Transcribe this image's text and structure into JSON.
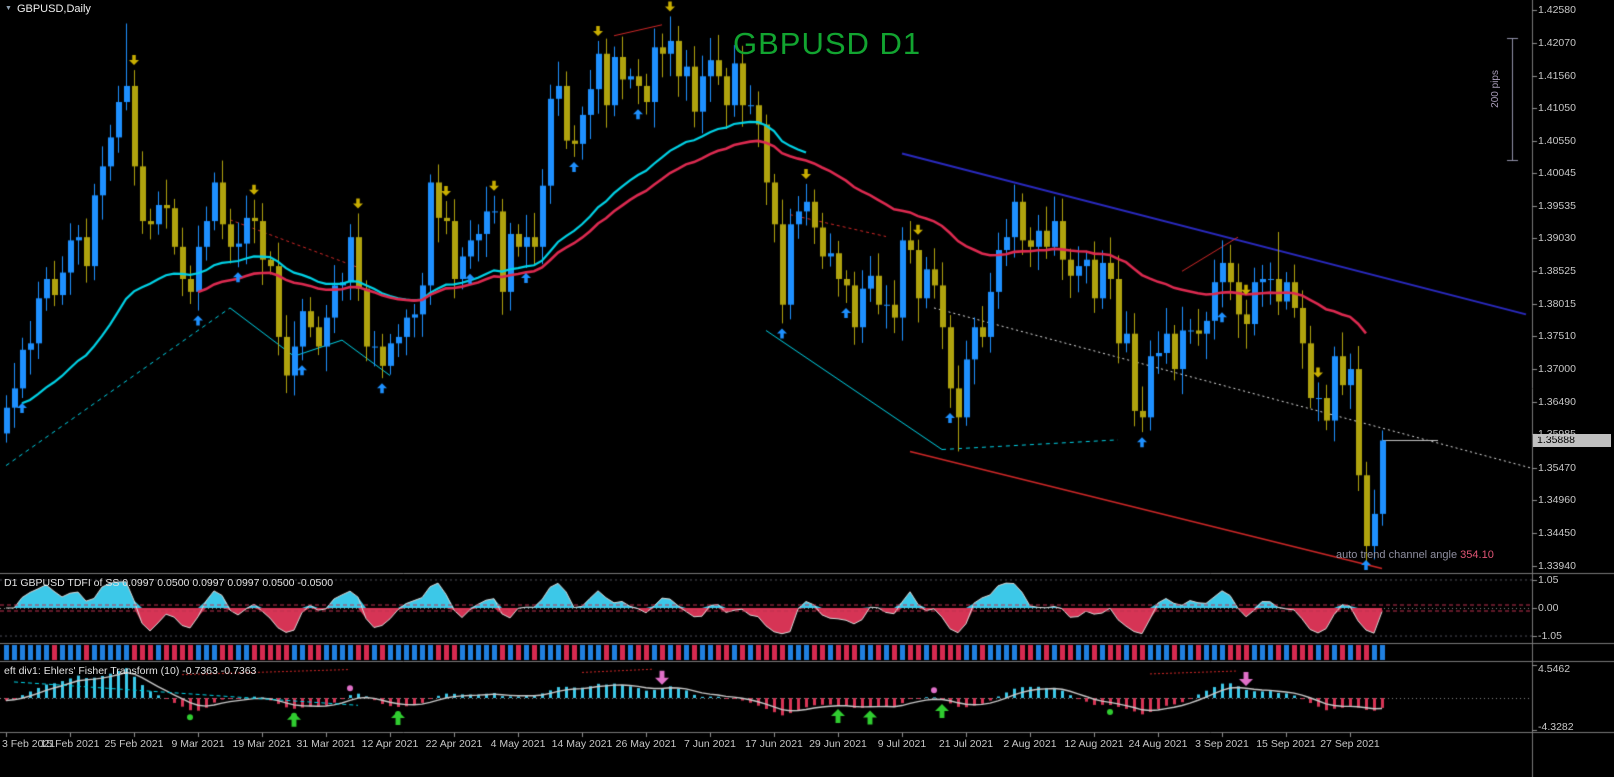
{
  "window": {
    "symbol_label": "GBPUSD,Daily",
    "watermark": "GBPUSD D1"
  },
  "overlays": {
    "pips_label": "200 pips",
    "trend_channel": {
      "label": "auto trend channel angle",
      "value": "354.10"
    }
  },
  "main_chart": {
    "current_price": "1.35888"
  },
  "indicators": {
    "tdfi": {
      "label": "D1 GBPUSD TDFI of SS 0.0997 0.0500 0.0997 0.0997 0.0500 -0.0500",
      "ticks": [
        "1.05",
        "0.00",
        "-1.05"
      ],
      "filter_levels": [
        0.05,
        -0.05
      ]
    },
    "fisher": {
      "label": "eft div1: Ehlers' Fisher Transform (10) -0.7363 -0.7363",
      "ticks": [
        "4.5462",
        "-4.3282"
      ]
    }
  },
  "colors": {
    "bull": "#1E90FF",
    "bear": "#b0a30e",
    "ma_fast": "#00d2e6",
    "ma_slow": "#dc2a50",
    "navy": "#2a2ac0",
    "channel_red": "#d02828",
    "dotted_white": "#e0e0e0",
    "silver": "#c0c0c0",
    "arrow_up": "#1E90FF",
    "arrow_down": "#c9ae00",
    "green": "#30cc30",
    "pink": "#e070c8",
    "tdfi_pos": "#3cc8e8",
    "tdfi_neg": "#d63455",
    "tdfi_line": "#d8d8d8",
    "filter_red": "#c03050",
    "strip_up": "#2080e0",
    "strip_down": "#d62a50",
    "watermark": "#12a430",
    "trend_value": "#e05575",
    "axis_text": "#c8c8c8"
  },
  "chart_data": {
    "type": "candlestick",
    "symbol": "GBPUSD",
    "timeframe": "D1",
    "bars_per_label": 8,
    "first_open": 1.36,
    "closes": [
      1.364,
      1.367,
      1.373,
      1.374,
      1.381,
      1.384,
      1.3815,
      1.385,
      1.39,
      1.3905,
      1.386,
      1.397,
      1.4015,
      1.406,
      1.4115,
      1.414,
      1.4015,
      1.393,
      1.3925,
      1.3955,
      1.395,
      1.389,
      1.384,
      1.382,
      1.389,
      1.393,
      1.399,
      1.3925,
      1.389,
      1.3895,
      1.3935,
      1.393,
      1.387,
      1.386,
      1.375,
      1.369,
      1.3735,
      1.379,
      1.3765,
      1.3735,
      1.378,
      1.383,
      1.3835,
      1.3905,
      1.3825,
      1.3735,
      1.3735,
      1.3705,
      1.374,
      1.375,
      1.378,
      1.3785,
      1.383,
      1.399,
      1.3935,
      1.393,
      1.384,
      1.3875,
      1.39,
      1.391,
      1.3945,
      1.3945,
      1.382,
      1.391,
      1.389,
      1.3905,
      1.389,
      1.3985,
      1.412,
      1.414,
      1.4055,
      1.405,
      1.4095,
      1.4135,
      1.419,
      1.411,
      1.4185,
      1.415,
      1.4155,
      1.414,
      1.4115,
      1.42,
      1.419,
      1.421,
      1.4155,
      1.417,
      1.41,
      1.4155,
      1.418,
      1.4155,
      1.411,
      1.4175,
      1.411,
      1.411,
      1.408,
      1.399,
      1.3925,
      1.38,
      1.3925,
      1.3945,
      1.396,
      1.392,
      1.3875,
      1.388,
      1.384,
      1.383,
      1.3765,
      1.3825,
      1.3845,
      1.38,
      1.38,
      1.378,
      1.39,
      1.3885,
      1.381,
      1.3855,
      1.383,
      1.3765,
      1.367,
      1.3625,
      1.3715,
      1.3765,
      1.375,
      1.382,
      1.3885,
      1.3905,
      1.396,
      1.39,
      1.389,
      1.3915,
      1.389,
      1.393,
      1.387,
      1.3845,
      1.386,
      1.387,
      1.381,
      1.3865,
      1.384,
      1.374,
      1.3755,
      1.3635,
      1.3625,
      1.372,
      1.3725,
      1.3755,
      1.37,
      1.376,
      1.376,
      1.3755,
      1.3775,
      1.3835,
      1.3865,
      1.3835,
      1.3785,
      1.377,
      1.3835,
      1.384,
      1.384,
      1.3805,
      1.3835,
      1.3795,
      1.374,
      1.3655,
      1.3655,
      1.362,
      1.372,
      1.3675,
      1.37,
      1.3535,
      1.3425,
      1.3475,
      1.3589
    ],
    "wick_overrides": {
      "15": [
        1.4237,
        null
      ],
      "83": [
        1.4248,
        null
      ],
      "119": [
        null,
        1.3572
      ],
      "142": [
        null,
        1.3602
      ],
      "159": [
        1.3913,
        null
      ],
      "170": [
        null,
        1.339
      ]
    },
    "price_range": {
      "max": 1.4258,
      "min": 1.3394
    },
    "price_ticks": [
      "1.42580",
      "1.42070",
      "1.41560",
      "1.41050",
      "1.40550",
      "1.40045",
      "1.39535",
      "1.39030",
      "1.38525",
      "1.38015",
      "1.37510",
      "1.37000",
      "1.36490",
      "1.35985",
      "1.35470",
      "1.34960",
      "1.34450",
      "1.33940"
    ],
    "time_labels": [
      "3 Feb 2021",
      "15 Feb 2021",
      "25 Feb 2021",
      "9 Mar 2021",
      "19 Mar 2021",
      "31 Mar 2021",
      "12 Apr 2021",
      "22 Apr 2021",
      "4 May 2021",
      "14 May 2021",
      "26 May 2021",
      "7 Jun 2021",
      "17 Jun 2021",
      "29 Jun 2021",
      "9 Jul 2021",
      "21 Jul 2021",
      "2 Aug 2021",
      "12 Aug 2021",
      "24 Aug 2021",
      "3 Sep 2021",
      "15 Sep 2021",
      "27 Sep 2021"
    ],
    "moving_averages": [
      {
        "name": "fast-ma",
        "color_key": "ma_fast",
        "period": 34,
        "from": 2,
        "to": 100,
        "width": 2.2
      },
      {
        "name": "slow-ma",
        "color_key": "ma_slow",
        "period": 45,
        "from": 24,
        "to": 170,
        "width": 2.6
      }
    ],
    "overlay_lines": [
      {
        "name": "upper-channel",
        "color_key": "navy",
        "width": 2,
        "dash": [],
        "points": [
          [
            112,
            1.4035
          ],
          [
            190,
            1.3785
          ]
        ]
      },
      {
        "name": "lower-channel",
        "color_key": "channel_red",
        "width": 1.5,
        "dash": [],
        "points": [
          [
            113,
            1.3572
          ],
          [
            172,
            1.339
          ]
        ]
      },
      {
        "name": "mid-trend-dotted",
        "color_key": "dotted_white",
        "width": 1,
        "dash": [
          2,
          3
        ],
        "points": [
          [
            116,
            1.3795
          ],
          [
            191,
            1.3545
          ]
        ]
      },
      {
        "name": "left-support-dashed",
        "color_key": "ma_fast",
        "width": 1,
        "dash": [
          4,
          4
        ],
        "points": [
          [
            0,
            1.355
          ],
          [
            28,
            1.3795
          ]
        ]
      },
      {
        "name": "march-support",
        "color_key": "ma_fast",
        "width": 1,
        "dash": [],
        "points": [
          [
            28,
            1.3795
          ],
          [
            36,
            1.372
          ],
          [
            42,
            1.3745
          ],
          [
            48,
            1.369
          ]
        ]
      },
      {
        "name": "summer-support",
        "color_key": "ma_fast",
        "width": 1,
        "dash": [],
        "points": [
          [
            95,
            1.376
          ],
          [
            117,
            1.3575
          ]
        ]
      },
      {
        "name": "summer-support-ext",
        "color_key": "ma_fast",
        "width": 1,
        "dash": [
          4,
          4
        ],
        "points": [
          [
            117,
            1.3575
          ],
          [
            139,
            1.359
          ]
        ]
      },
      {
        "name": "top-divergence",
        "color_key": "channel_red",
        "width": 1,
        "dash": [],
        "points": [
          [
            76,
            1.4218
          ],
          [
            82,
            1.4235
          ]
        ]
      },
      {
        "name": "sep-divergence",
        "color_key": "channel_red",
        "width": 1,
        "dash": [],
        "points": [
          [
            147,
            1.3852
          ],
          [
            154,
            1.3905
          ]
        ]
      },
      {
        "name": "mar-divergence",
        "color_key": "channel_red",
        "width": 1,
        "dash": [
          3,
          3
        ],
        "points": [
          [
            28,
            1.3932
          ],
          [
            44,
            1.3858
          ]
        ]
      },
      {
        "name": "jun-divergence",
        "color_key": "channel_red",
        "width": 1,
        "dash": [
          3,
          3
        ],
        "points": [
          [
            98,
            1.394
          ],
          [
            110,
            1.3906
          ]
        ]
      },
      {
        "name": "price-ray",
        "color_key": "silver",
        "width": 1,
        "dash": [],
        "points": [
          [
            172,
            1.3589
          ],
          [
            179,
            1.3589
          ]
        ]
      }
    ],
    "signals": {
      "down_arrows": [
        16,
        31,
        44,
        55,
        61,
        74,
        83,
        100,
        114,
        155,
        164
      ],
      "up_arrows": [
        2,
        24,
        29,
        37,
        47,
        58,
        65,
        71,
        79,
        97,
        105,
        118,
        142,
        152,
        170
      ]
    },
    "fisher_signals": {
      "green_arrows": [
        36,
        49,
        104,
        108,
        117
      ],
      "pink_arrows": [
        82,
        155
      ],
      "green_dots": [
        23,
        36,
        49,
        138
      ],
      "pink_dots": [
        43,
        116
      ]
    },
    "fisher_overlay_lines": [
      {
        "color_key": "ma_fast",
        "width": 1,
        "dash": [
          4,
          3
        ],
        "points": [
          [
            1,
            2.2
          ],
          [
            44,
            -1.0
          ]
        ]
      },
      {
        "color_key": "channel_red",
        "width": 1,
        "dash": [
          2,
          2
        ],
        "points": [
          [
            22,
            3.2
          ],
          [
            43,
            3.9
          ]
        ]
      },
      {
        "color_key": "channel_red",
        "width": 1,
        "dash": [
          2,
          2
        ],
        "points": [
          [
            72,
            3.5
          ],
          [
            81,
            3.95
          ]
        ]
      },
      {
        "color_key": "channel_red",
        "width": 1,
        "dash": [
          2,
          2
        ],
        "points": [
          [
            143,
            3.3
          ],
          [
            154,
            3.7
          ]
        ]
      }
    ]
  }
}
